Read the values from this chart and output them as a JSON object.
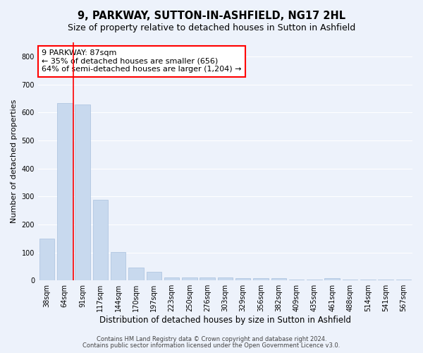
{
  "title": "9, PARKWAY, SUTTON-IN-ASHFIELD, NG17 2HL",
  "subtitle": "Size of property relative to detached houses in Sutton in Ashfield",
  "xlabel": "Distribution of detached houses by size in Sutton in Ashfield",
  "ylabel": "Number of detached properties",
  "categories": [
    "38sqm",
    "64sqm",
    "91sqm",
    "117sqm",
    "144sqm",
    "170sqm",
    "197sqm",
    "223sqm",
    "250sqm",
    "276sqm",
    "303sqm",
    "329sqm",
    "356sqm",
    "382sqm",
    "409sqm",
    "435sqm",
    "461sqm",
    "488sqm",
    "514sqm",
    "541sqm",
    "567sqm"
  ],
  "values": [
    150,
    632,
    628,
    287,
    102,
    46,
    30,
    10,
    10,
    10,
    10,
    8,
    8,
    8,
    3,
    3,
    8,
    3,
    3,
    3,
    3
  ],
  "bar_color": "#c8d9ee",
  "bar_edgecolor": "#a8c0de",
  "vline_x": 1.5,
  "vline_color": "red",
  "annotation_line1": "9 PARKWAY: 87sqm",
  "annotation_line2": "← 35% of detached houses are smaller (656)",
  "annotation_line3": "64% of semi-detached houses are larger (1,204) →",
  "annotation_box_color": "white",
  "annotation_box_edgecolor": "red",
  "ylim": [
    0,
    850
  ],
  "yticks": [
    0,
    100,
    200,
    300,
    400,
    500,
    600,
    700,
    800
  ],
  "footnote1": "Contains HM Land Registry data © Crown copyright and database right 2024.",
  "footnote2": "Contains public sector information licensed under the Open Government Licence v3.0.",
  "title_fontsize": 10.5,
  "subtitle_fontsize": 9,
  "xlabel_fontsize": 8.5,
  "ylabel_fontsize": 8,
  "tick_fontsize": 7,
  "annotation_fontsize": 8,
  "footnote_fontsize": 6,
  "background_color": "#edf2fb",
  "plot_background_color": "#edf2fb",
  "grid_color": "#ffffff"
}
